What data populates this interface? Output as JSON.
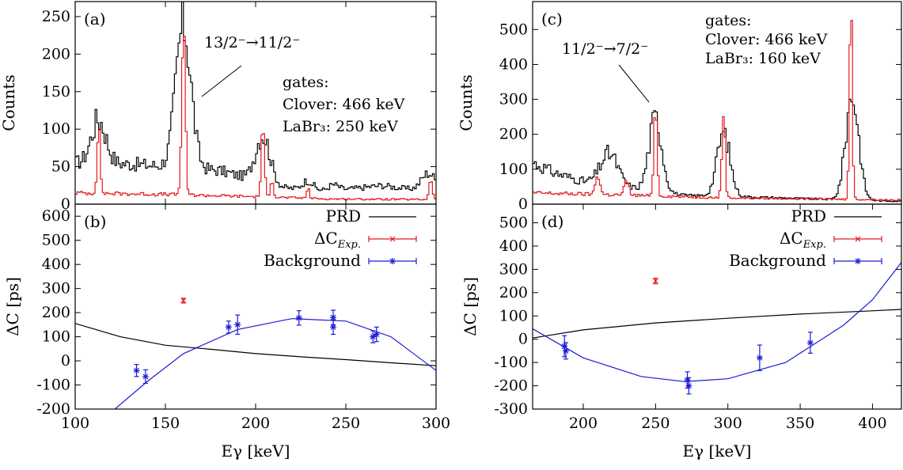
{
  "colors": {
    "black": "#000000",
    "red": "#e41a1c",
    "blue": "#1a1ad6"
  },
  "chart_data": [
    {
      "id": "a",
      "type": "line",
      "panel_label": "(a)",
      "ylabel": "Counts",
      "xlim": [
        100,
        300
      ],
      "ylim": [
        0,
        270
      ],
      "xticks": [
        100,
        150,
        200,
        250,
        300
      ],
      "yticks": [
        0,
        50,
        100,
        150,
        200,
        250
      ],
      "annotations": [
        "13/2⁻→11/2⁻",
        "gates:",
        "Clover: 466 keV",
        "LaBr₃: 250 keV"
      ],
      "series": [
        {
          "color": "black",
          "peaks": [
            [
              113,
              58,
              4
            ],
            [
              160,
              190,
              4.2
            ],
            [
              204,
              63,
              4
            ],
            [
              229,
              12,
              3
            ],
            [
              243,
              8,
              3
            ],
            [
              296,
              25,
              4
            ]
          ],
          "background": [
            [
              100,
              55
            ],
            [
              120,
              55
            ],
            [
              140,
              52
            ],
            [
              180,
              45
            ],
            [
              215,
              22
            ],
            [
              240,
              17
            ],
            [
              270,
              25
            ],
            [
              300,
              15
            ]
          ]
        },
        {
          "color": "red",
          "peaks": [
            [
              113,
              82,
              0.9
            ],
            [
              160,
              215,
              1.0
            ],
            [
              204,
              85,
              0.9
            ],
            [
              209,
              28,
              0.8
            ],
            [
              229,
              12,
              0.8
            ],
            [
              297,
              30,
              0.9
            ]
          ],
          "background": [
            [
              100,
              15
            ],
            [
              150,
              13
            ],
            [
              200,
              10
            ],
            [
              240,
              7
            ],
            [
              300,
              6
            ]
          ]
        }
      ]
    },
    {
      "id": "b",
      "type": "scatter",
      "panel_label": "(b)",
      "ylabel": "ΔC [ps]",
      "xlabel": "Eγ [keV]",
      "xlim": [
        100,
        300
      ],
      "ylim": [
        -200,
        650
      ],
      "xticks": [
        100,
        150,
        200,
        250,
        300
      ],
      "yticks": [
        -200,
        -100,
        0,
        100,
        200,
        300,
        400,
        500,
        600
      ],
      "legend_position": "top-right",
      "legend": [
        "PRD",
        "ΔC",
        "Background"
      ],
      "legend_subscript": "Exp.",
      "prd_curve": [
        [
          100,
          155
        ],
        [
          125,
          100
        ],
        [
          150,
          65
        ],
        [
          175,
          48
        ],
        [
          200,
          30
        ],
        [
          225,
          17
        ],
        [
          250,
          5
        ],
        [
          275,
          -8
        ],
        [
          300,
          -20
        ]
      ],
      "fit_curve": [
        [
          122,
          -200
        ],
        [
          140,
          -85
        ],
        [
          160,
          30
        ],
        [
          190,
          130
        ],
        [
          220,
          175
        ],
        [
          250,
          165
        ],
        [
          275,
          100
        ],
        [
          300,
          -40
        ]
      ],
      "exp_points": [
        {
          "x": 160,
          "y": 250,
          "err": 10
        }
      ],
      "background_points": [
        {
          "x": 134,
          "y": -40,
          "err": 25
        },
        {
          "x": 139,
          "y": -65,
          "err": 28
        },
        {
          "x": 185,
          "y": 140,
          "err": 25
        },
        {
          "x": 190,
          "y": 150,
          "err": 40
        },
        {
          "x": 224,
          "y": 178,
          "err": 30
        },
        {
          "x": 243,
          "y": 180,
          "err": 30
        },
        {
          "x": 243,
          "y": 140,
          "err": 30
        },
        {
          "x": 265,
          "y": 100,
          "err": 25
        },
        {
          "x": 267,
          "y": 110,
          "err": 30
        }
      ]
    },
    {
      "id": "c",
      "type": "line",
      "panel_label": "(c)",
      "ylabel": "Counts",
      "xlim": [
        165,
        420
      ],
      "ylim": [
        0,
        580
      ],
      "xticks": [],
      "yticks": [
        0,
        100,
        200,
        300,
        400,
        500
      ],
      "annotations": [
        "11/2⁻→7/2⁻",
        "gates:",
        "Clover: 466 keV",
        "LaBr₃: 160 keV"
      ],
      "series": [
        {
          "color": "black",
          "peaks": [
            [
              218,
              90,
              6
            ],
            [
              250,
              210,
              4.5
            ],
            [
              297,
              180,
              4.5
            ],
            [
              386,
              300,
              4.5
            ]
          ],
          "background": [
            [
              165,
              120
            ],
            [
              180,
              90
            ],
            [
              200,
              65
            ],
            [
              270,
              25
            ],
            [
              320,
              20
            ],
            [
              360,
              15
            ],
            [
              400,
              10
            ],
            [
              420,
              8
            ]
          ]
        },
        {
          "color": "red",
          "peaks": [
            [
              210,
              60,
              1.5
            ],
            [
              230,
              40,
              1.5
            ],
            [
              250,
              310,
              1.0
            ],
            [
              297,
              260,
              1.1
            ],
            [
              385,
              580,
              1.0
            ]
          ],
          "background": [
            [
              165,
              32
            ],
            [
              230,
              26
            ],
            [
              300,
              18
            ],
            [
              420,
              12
            ]
          ]
        }
      ]
    },
    {
      "id": "d",
      "type": "scatter",
      "panel_label": "(d)",
      "ylabel": "ΔC [ps]",
      "xlabel": "Eγ [keV]",
      "xlim": [
        165,
        420
      ],
      "ylim": [
        -300,
        580
      ],
      "xticks": [
        200,
        250,
        300,
        350,
        400
      ],
      "yticks": [
        -300,
        -200,
        -100,
        0,
        100,
        200,
        300,
        400,
        500
      ],
      "legend_position": "top-right",
      "legend": [
        "PRD",
        "ΔC",
        "Background"
      ],
      "legend_subscript": "Exp.",
      "prd_curve": [
        [
          165,
          5
        ],
        [
          200,
          40
        ],
        [
          250,
          70
        ],
        [
          300,
          90
        ],
        [
          350,
          108
        ],
        [
          400,
          122
        ],
        [
          420,
          128
        ]
      ],
      "fit_curve": [
        [
          165,
          45
        ],
        [
          200,
          -80
        ],
        [
          240,
          -160
        ],
        [
          270,
          -182
        ],
        [
          300,
          -170
        ],
        [
          340,
          -100
        ],
        [
          380,
          60
        ],
        [
          400,
          170
        ],
        [
          420,
          330
        ]
      ],
      "exp_points": [
        {
          "x": 250,
          "y": 250,
          "err": 12
        }
      ],
      "background_points": [
        {
          "x": 187,
          "y": -30,
          "err": 45
        },
        {
          "x": 188,
          "y": -50,
          "err": 35
        },
        {
          "x": 272,
          "y": -175,
          "err": 35
        },
        {
          "x": 273,
          "y": -200,
          "err": 35
        },
        {
          "x": 322,
          "y": -80,
          "err": 55
        },
        {
          "x": 357,
          "y": -15,
          "err": 45
        }
      ]
    }
  ]
}
